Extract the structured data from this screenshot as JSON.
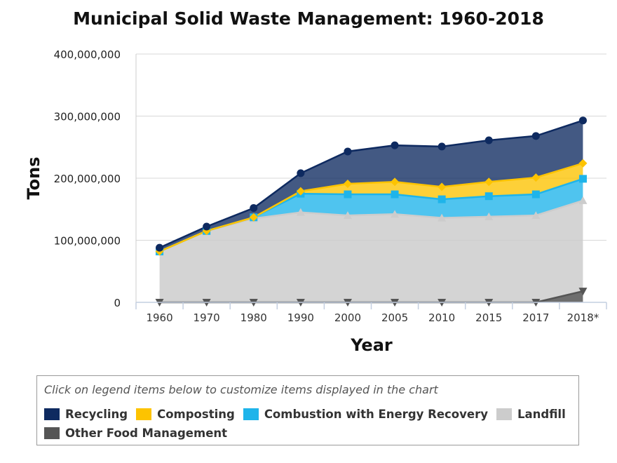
{
  "chart_data": {
    "type": "area",
    "stacked": true,
    "title": "Municipal Solid Waste Management: 1960-2018",
    "xlabel": "Year",
    "ylabel": "Tons",
    "ylim": [
      0,
      400000000
    ],
    "yticks": [
      0,
      100000000,
      200000000,
      300000000,
      400000000
    ],
    "ytick_labels": [
      "0",
      "100,000,000",
      "200,000,000",
      "300,000,000",
      "400,000,000"
    ],
    "categories": [
      "1960",
      "1970",
      "1980",
      "1990",
      "2000",
      "2005",
      "2010",
      "2015",
      "2017",
      "2018*"
    ],
    "grid": true,
    "legend_position": "bottom",
    "series": [
      {
        "name": "Other Food Management",
        "color": "#555555",
        "marker": "triangle-down",
        "values": [
          0,
          0,
          0,
          0,
          0,
          0,
          0,
          0,
          0,
          18000000
        ]
      },
      {
        "name": "Landfill",
        "color": "#cccccc",
        "marker": "triangle-up",
        "values": [
          82000000,
          115000000,
          135000000,
          145000000,
          140000000,
          142000000,
          136000000,
          138000000,
          140000000,
          146000000
        ]
      },
      {
        "name": "Combustion with Energy Recovery",
        "color": "#1eb4ea",
        "marker": "square",
        "values": [
          0,
          0,
          2000000,
          30000000,
          34000000,
          32000000,
          30000000,
          33000000,
          34000000,
          35000000
        ]
      },
      {
        "name": "Composting",
        "color": "#fdc300",
        "marker": "diamond",
        "values": [
          0,
          0,
          0,
          4000000,
          17000000,
          20000000,
          20000000,
          23000000,
          27000000,
          25000000
        ]
      },
      {
        "name": "Recycling",
        "color": "#0e2a60",
        "marker": "circle",
        "values": [
          6000000,
          7000000,
          15000000,
          29000000,
          52000000,
          59000000,
          65000000,
          67000000,
          67000000,
          69000000
        ]
      }
    ]
  },
  "legend": {
    "instruction": "Click on legend items below to customize items displayed in the chart",
    "items": [
      {
        "label": "Recycling",
        "color": "#0e2a60"
      },
      {
        "label": "Composting",
        "color": "#fdc300"
      },
      {
        "label": "Combustion with Energy Recovery",
        "color": "#1eb4ea"
      },
      {
        "label": "Landfill",
        "color": "#cccccc"
      },
      {
        "label": "Other Food Management",
        "color": "#555555"
      }
    ]
  }
}
